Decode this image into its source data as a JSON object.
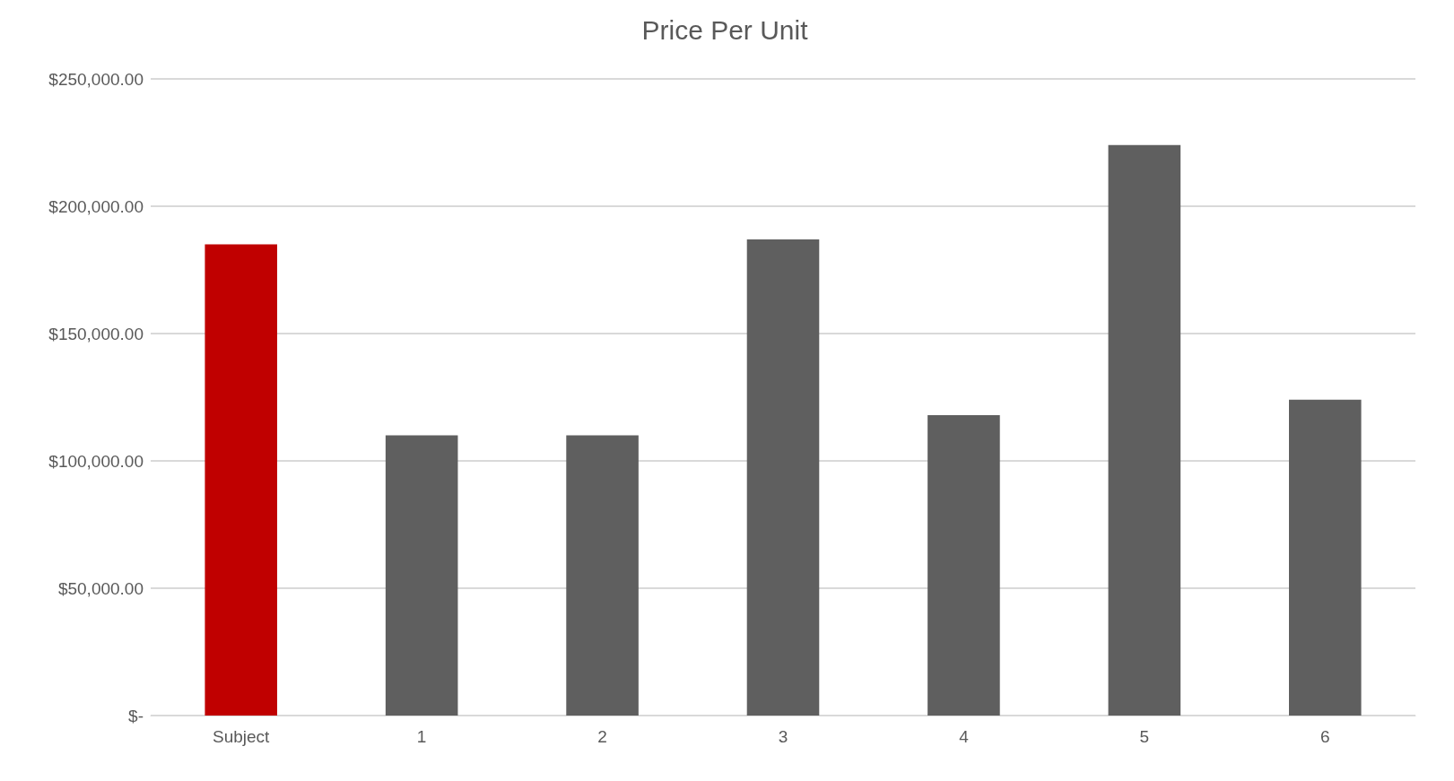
{
  "chart_data": {
    "type": "bar",
    "title": "Price Per Unit",
    "categories": [
      "Subject",
      "1",
      "2",
      "3",
      "4",
      "5",
      "6"
    ],
    "values": [
      185000,
      110000,
      110000,
      187000,
      118000,
      224000,
      124000
    ],
    "colors": [
      "#c00000",
      "#5f5f5f",
      "#5f5f5f",
      "#5f5f5f",
      "#5f5f5f",
      "#5f5f5f",
      "#5f5f5f"
    ],
    "ylim": [
      0,
      250000
    ],
    "yticks": [
      {
        "value": 0,
        "label": "$-"
      },
      {
        "value": 50000,
        "label": "$50,000.00"
      },
      {
        "value": 100000,
        "label": "$100,000.00"
      },
      {
        "value": 150000,
        "label": "$150,000.00"
      },
      {
        "value": 200000,
        "label": "$200,000.00"
      },
      {
        "value": 250000,
        "label": "$250,000.00"
      }
    ],
    "grid": "y"
  }
}
